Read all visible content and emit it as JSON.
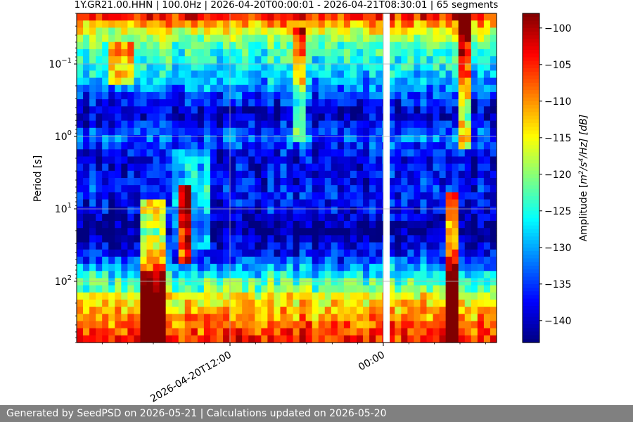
{
  "chart_data": {
    "type": "heatmap",
    "title": "1Y.GR21.00.HHN | 100.0Hz | 2026-04-20T00:00:01 - 2026-04-21T08:30:01 | 65 segments",
    "ylabel": "Period [s]",
    "colorbar_label": "Amplitude [m²/s⁴/Hz] [dB]",
    "colorbar_label_parts": {
      "pre": "Amplitude [",
      "m": "m",
      "sup1": "2",
      "mid": "/s",
      "sup2": "4",
      "post": "/Hz] [dB]"
    },
    "y_scale": "log",
    "y_axis_inverted": true,
    "ylim": [
      0.02,
      700
    ],
    "y_tick_labels": [
      {
        "value": 0.1,
        "base": "10",
        "exp": "−1"
      },
      {
        "value": 1,
        "base": "10",
        "exp": "0"
      },
      {
        "value": 10,
        "base": "10",
        "exp": "1"
      },
      {
        "value": 100,
        "base": "10",
        "exp": "2"
      }
    ],
    "x_time_range": [
      "2026-04-20T00:00:01",
      "2026-04-21T08:30:01"
    ],
    "x_tick_labels": [
      {
        "hours": 12,
        "label": "2026-04-20T12:00"
      },
      {
        "hours": 24,
        "label": "00:00"
      }
    ],
    "segments": 65,
    "gap_hours": [
      24.0,
      24.5
    ],
    "color_range_db": [
      -143,
      -98
    ],
    "colorbar_ticks": [
      -100,
      -105,
      -110,
      -115,
      -120,
      -125,
      -130,
      -135,
      -140
    ],
    "colormap": "jet",
    "grid": true,
    "approx_levels": {
      "period_bands_s": [
        0.02,
        0.03,
        0.05,
        0.1,
        0.2,
        0.5,
        1,
        2,
        5,
        10,
        20,
        50,
        100,
        200,
        700
      ],
      "typical_profile_db": [
        -102,
        -113,
        -122,
        -126,
        -131,
        -141,
        -133,
        -139,
        -137,
        -138,
        -143,
        -135,
        -123,
        -118,
        -108
      ],
      "events_hours": [
        6,
        8,
        12,
        17.5,
        28,
        30
      ]
    }
  },
  "footer": {
    "text": "Generated by SeedPSD on 2026-05-21 | Calculations updated on 2026-05-20"
  }
}
